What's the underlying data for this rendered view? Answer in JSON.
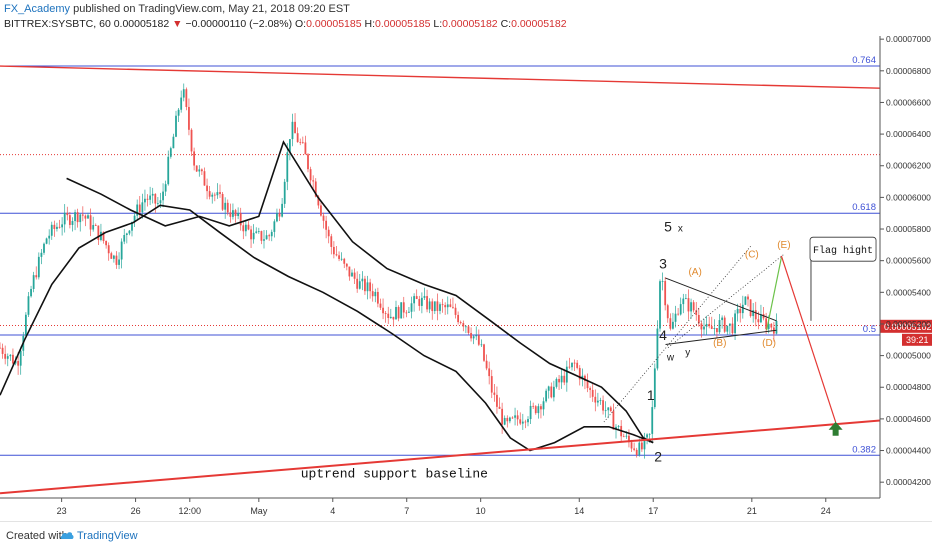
{
  "header": {
    "author": "FX_Academy",
    "published": "published on TradingView.com, May 21, 2018 09:20 EST",
    "symbol": "BITTREX:SYSBTC, 60",
    "last": "0.00005182",
    "change": "−0.00000110 (−2.08%)",
    "o_label": "O:",
    "o_value": "0.00005185",
    "h_label": "H:",
    "h_value": "0.00005185",
    "l_label": "L:",
    "l_value": "0.00005182",
    "c_label": "C:",
    "c_value": "0.00005182"
  },
  "footer": {
    "created_with": "Created with",
    "brand": "TradingView"
  },
  "colors": {
    "up": "#26a69a",
    "down": "#ef5350",
    "fib": "#3f51d6",
    "trend": "#e53935",
    "arrow": "#2e7d32",
    "wave_orange": "#e08a2e"
  },
  "chart_data": {
    "type": "candlestick",
    "y_ticks": [
      "0.00007000",
      "0.00006800",
      "0.00006600",
      "0.00006400",
      "0.00006200",
      "0.00006000",
      "0.00005800",
      "0.00005600",
      "0.00005400",
      "0.00005200",
      "0.00005000",
      "0.00004800",
      "0.00004600",
      "0.00004400",
      "0.00004200"
    ],
    "ylim": [
      4.1e-05,
      7.02e-05
    ],
    "x_ticks": [
      {
        "label": "23",
        "day": 23
      },
      {
        "label": "26",
        "day": 26
      },
      {
        "label": "12:00",
        "day": 28.2
      },
      {
        "label": "May",
        "day": 31
      },
      {
        "label": "4",
        "day": 34
      },
      {
        "label": "7",
        "day": 37
      },
      {
        "label": "10",
        "day": 40
      },
      {
        "label": "14",
        "day": 44
      },
      {
        "label": "17",
        "day": 47
      },
      {
        "label": "21",
        "day": 51
      },
      {
        "label": "24",
        "day": 54
      }
    ],
    "xlim": [
      20.5,
      56.2
    ],
    "fib_levels": [
      {
        "label": "0.764",
        "price": 6.83e-05
      },
      {
        "label": "0.618",
        "price": 5.9e-05
      },
      {
        "label": "0.5",
        "price": 5.13e-05
      },
      {
        "label": "0.382",
        "price": 4.37e-05
      }
    ],
    "current_price": {
      "label": "0.00005182",
      "price": 5.182e-05,
      "countdown": "39:21"
    },
    "dotted_levels": [
      6.27e-05,
      5.19e-05
    ],
    "wave_labels": [
      {
        "text": "5",
        "day": 47.6,
        "price": 5.785e-05,
        "color": "#222"
      },
      {
        "text": "x",
        "day": 48.1,
        "price": 5.785e-05,
        "color": "#222"
      },
      {
        "text": "3",
        "day": 47.4,
        "price": 5.55e-05,
        "color": "#222"
      },
      {
        "text": "4",
        "day": 47.4,
        "price": 5.1e-05,
        "color": "#222"
      },
      {
        "text": "w",
        "day": 47.7,
        "price": 4.97e-05,
        "color": "#222"
      },
      {
        "text": "y",
        "day": 48.4,
        "price": 5e-05,
        "color": "#222"
      },
      {
        "text": "1",
        "day": 46.9,
        "price": 4.72e-05,
        "color": "#222"
      },
      {
        "text": "2",
        "day": 47.2,
        "price": 4.33e-05,
        "color": "#222"
      },
      {
        "text": "(A)",
        "day": 48.7,
        "price": 5.51e-05,
        "color": "#e08a2e"
      },
      {
        "text": "(B)",
        "day": 49.7,
        "price": 5.06e-05,
        "color": "#e08a2e"
      },
      {
        "text": "(C)",
        "day": 51.0,
        "price": 5.62e-05,
        "color": "#e08a2e"
      },
      {
        "text": "(D)",
        "day": 51.7,
        "price": 5.06e-05,
        "color": "#e08a2e"
      },
      {
        "text": "(E)",
        "day": 52.3,
        "price": 5.68e-05,
        "color": "#e08a2e"
      }
    ],
    "annotations": [
      {
        "text": "uptrend support baseline",
        "day": 32.7,
        "price": 4.23e-05
      },
      {
        "text": "Flag hight",
        "day": 54.7,
        "price": 5.66e-05
      }
    ]
  }
}
